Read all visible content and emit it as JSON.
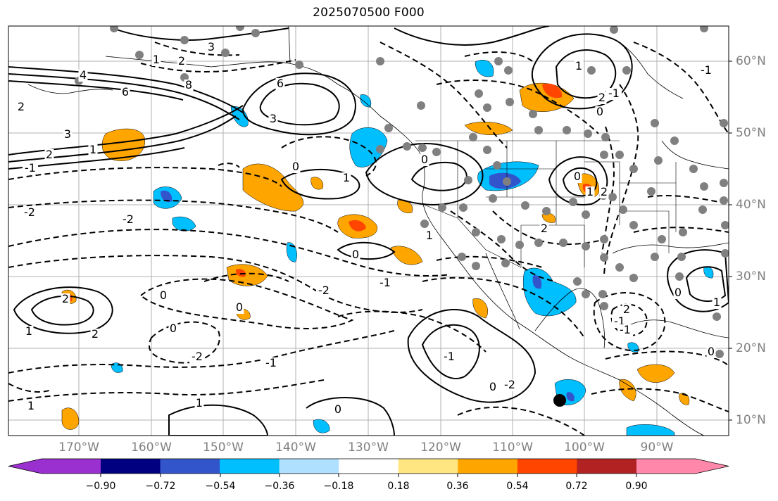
{
  "title": "2025070500 F000",
  "lat_labels": [
    "60°N",
    "50°N",
    "40°N",
    "30°N",
    "20°N",
    "10°N"
  ],
  "lon_labels": [
    "170°W",
    "160°W",
    "150°W",
    "140°W",
    "130°W",
    "120°W",
    "110°W",
    "100°W",
    "90°W"
  ],
  "colorbar": {
    "ticks": [
      "−0.90",
      "−0.72",
      "−0.54",
      "−0.36",
      "−0.18",
      "0.18",
      "0.36",
      "0.54",
      "0.72",
      "0.90"
    ],
    "colors": [
      "#9b30d0",
      "#000080",
      "#3355cc",
      "#00bfff",
      "#b0e0ff",
      "#ffffff",
      "#ffe680",
      "#ffa500",
      "#ff4500",
      "#b22222",
      "#ff88aa"
    ]
  },
  "map": {
    "extent_lon": [
      -180,
      -80
    ],
    "extent_lat": [
      8,
      66
    ],
    "contour_labels": [
      "3",
      "2",
      "1",
      "4",
      "6",
      "8",
      "2",
      "3",
      "1",
      "2",
      "3",
      "6",
      "1",
      "2",
      "-1",
      "-2",
      "-2",
      "0",
      "1",
      "0",
      "-2",
      "-1",
      "0",
      "0",
      "2",
      "1",
      "2",
      "0",
      "-2",
      "-1",
      "1",
      "0",
      "-2",
      "0",
      "-1",
      "1",
      "0",
      "0",
      "1",
      "0",
      "-1",
      "2",
      "-1",
      "1",
      "0",
      "-1",
      "-1",
      "2",
      "2",
      "0",
      "1"
    ],
    "station_marker_color": "#808080",
    "highlight_marker_color": "#000000"
  }
}
